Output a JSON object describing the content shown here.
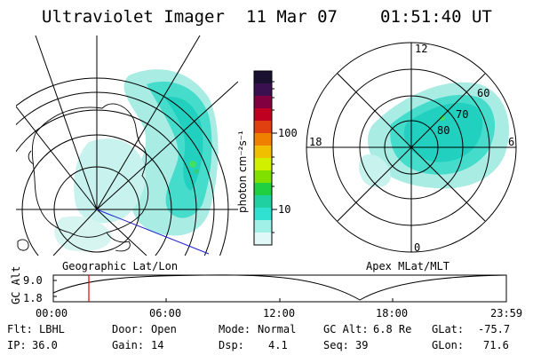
{
  "header": {
    "title": "Ultraviolet Imager",
    "date": "11 Mar 07",
    "time": "01:51:40 UT"
  },
  "left_panel": {
    "caption": "Geographic Lat/Lon"
  },
  "colorbar": {
    "unit_label": "photon cm⁻²s⁻¹",
    "ticks": [
      "100",
      "10"
    ],
    "colors": [
      "#1a1030",
      "#3a1050",
      "#800040",
      "#c00020",
      "#e04010",
      "#f08000",
      "#f0c000",
      "#d0f000",
      "#80e000",
      "#20d040",
      "#20d0a0",
      "#30e0d0",
      "#a0f0e8",
      "#e0f8f8"
    ]
  },
  "right_panel": {
    "caption": "Apex MLat/MLT",
    "mlt_labels": [
      "12",
      "18",
      "6",
      "0"
    ],
    "mlat_labels": [
      "60",
      "70",
      "80"
    ]
  },
  "altitude_plot": {
    "ylabel": "GC Alt",
    "yticks": [
      "9.0",
      "1.8"
    ],
    "xticks": [
      "00:00",
      "06:00",
      "12:00",
      "18:00",
      "23:59"
    ],
    "marker_color": "#e00000"
  },
  "info": {
    "row1": [
      {
        "label": "Flt:",
        "value": "LBHL"
      },
      {
        "label": "Door:",
        "value": "Open"
      },
      {
        "label": "Mode:",
        "value": "Normal"
      },
      {
        "label": "GC Alt:",
        "value": "6.8 Re"
      },
      {
        "label": "GLat:",
        "value": "-75.7"
      }
    ],
    "row2": [
      {
        "label": "IP:",
        "value": "36.0"
      },
      {
        "label": "Gain:",
        "value": "14"
      },
      {
        "label": "Dsp:",
        "value": "4.1"
      },
      {
        "label": "Seq:",
        "value": "39"
      },
      {
        "label": "GLon:",
        "value": "71.6"
      }
    ]
  }
}
